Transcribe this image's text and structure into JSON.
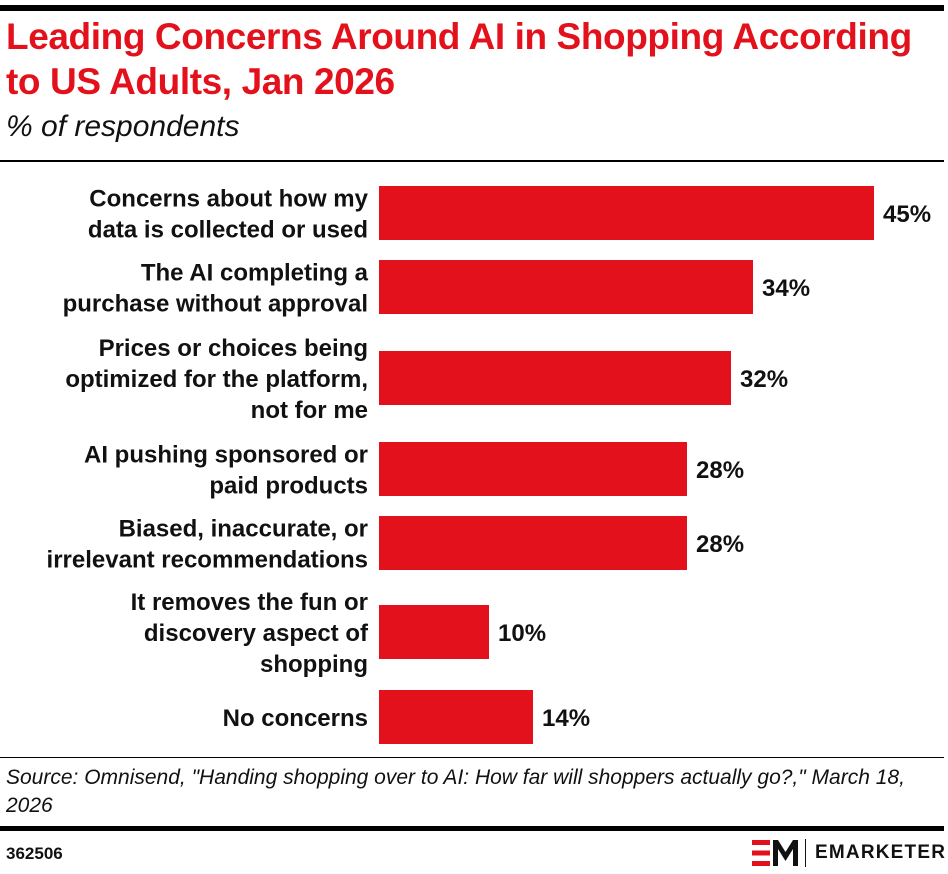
{
  "header": {
    "title": "Leading Concerns Around AI in Shopping According to US Adults, Jan 2026",
    "subtitle": "% of respondents"
  },
  "chart_data": {
    "type": "bar",
    "orientation": "horizontal",
    "categories": [
      [
        "Concerns about how my",
        "data is collected or used"
      ],
      [
        "The AI completing a",
        "purchase without approval"
      ],
      [
        "Prices or choices being",
        "optimized for the platform,",
        "not for me"
      ],
      [
        "AI pushing sponsored or",
        "paid products"
      ],
      [
        "Biased, inaccurate, or",
        "irrelevant recommendations"
      ],
      [
        "It removes the fun or",
        "discovery aspect of",
        "shopping"
      ],
      [
        "No concerns"
      ]
    ],
    "values": [
      45,
      34,
      32,
      28,
      28,
      10,
      14
    ],
    "value_labels": [
      "45%",
      "34%",
      "32%",
      "28%",
      "28%",
      "10%",
      "14%"
    ],
    "unit": "%",
    "bar_color": "#e3111b",
    "grid": false,
    "legend": "none"
  },
  "footer": {
    "source": "Source: Omnisend, \"Handing shopping over to AI: How far will shoppers actually go?,\" March 18, 2026",
    "chart_id": "362506",
    "brand": "EMARKETER",
    "brand_color": "#e3111b"
  }
}
